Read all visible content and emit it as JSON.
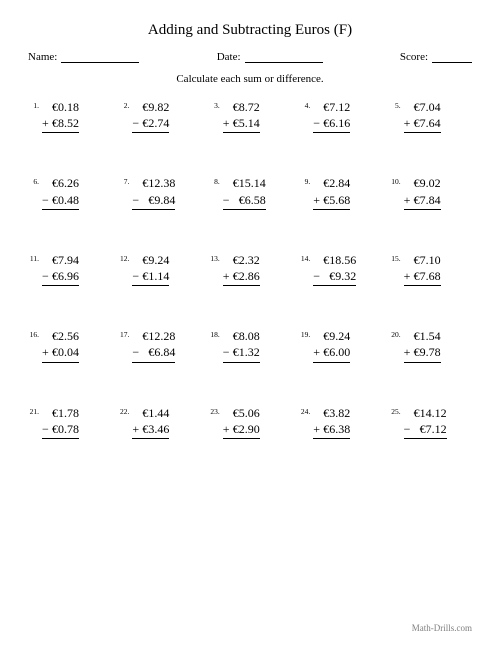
{
  "title": "Adding and Subtracting Euros (F)",
  "labels": {
    "name": "Name:",
    "date": "Date:",
    "score": "Score:"
  },
  "instruction": "Calculate each sum or difference.",
  "footer": "Math-Drills.com",
  "problems": [
    {
      "n": "1.",
      "a": "€0.18",
      "op": "+",
      "b": "€8.52"
    },
    {
      "n": "2.",
      "a": "€9.82",
      "op": "−",
      "b": "€2.74"
    },
    {
      "n": "3.",
      "a": "€8.72",
      "op": "+",
      "b": "€5.14"
    },
    {
      "n": "4.",
      "a": "€7.12",
      "op": "−",
      "b": "€6.16"
    },
    {
      "n": "5.",
      "a": "€7.04",
      "op": "+",
      "b": "€7.64"
    },
    {
      "n": "6.",
      "a": "€6.26",
      "op": "−",
      "b": "€0.48"
    },
    {
      "n": "7.",
      "a": "€12.38",
      "op": "−",
      "b": "€9.84"
    },
    {
      "n": "8.",
      "a": "€15.14",
      "op": "−",
      "b": "€6.58"
    },
    {
      "n": "9.",
      "a": "€2.84",
      "op": "+",
      "b": "€5.68"
    },
    {
      "n": "10.",
      "a": "€9.02",
      "op": "+",
      "b": "€7.84"
    },
    {
      "n": "11.",
      "a": "€7.94",
      "op": "−",
      "b": "€6.96"
    },
    {
      "n": "12.",
      "a": "€9.24",
      "op": "−",
      "b": "€1.14"
    },
    {
      "n": "13.",
      "a": "€2.32",
      "op": "+",
      "b": "€2.86"
    },
    {
      "n": "14.",
      "a": "€18.56",
      "op": "−",
      "b": "€9.32"
    },
    {
      "n": "15.",
      "a": "€7.10",
      "op": "+",
      "b": "€7.68"
    },
    {
      "n": "16.",
      "a": "€2.56",
      "op": "+",
      "b": "€0.04"
    },
    {
      "n": "17.",
      "a": "€12.28",
      "op": "−",
      "b": "€6.84"
    },
    {
      "n": "18.",
      "a": "€8.08",
      "op": "−",
      "b": "€1.32"
    },
    {
      "n": "19.",
      "a": "€9.24",
      "op": "+",
      "b": "€6.00"
    },
    {
      "n": "20.",
      "a": "€1.54",
      "op": "+",
      "b": "€9.78"
    },
    {
      "n": "21.",
      "a": "€1.78",
      "op": "−",
      "b": "€0.78"
    },
    {
      "n": "22.",
      "a": "€1.44",
      "op": "+",
      "b": "€3.46"
    },
    {
      "n": "23.",
      "a": "€5.06",
      "op": "+",
      "b": "€2.90"
    },
    {
      "n": "24.",
      "a": "€3.82",
      "op": "+",
      "b": "€6.38"
    },
    {
      "n": "25.",
      "a": "€14.12",
      "op": "−",
      "b": "€7.12"
    }
  ],
  "layout": {
    "name_line_width": 78,
    "date_line_width": 78,
    "score_line_width": 40
  },
  "colors": {
    "text": "#000000",
    "bg": "#ffffff",
    "footer": "#808080"
  }
}
